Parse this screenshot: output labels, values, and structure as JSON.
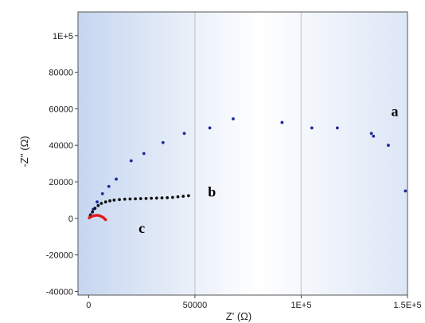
{
  "chart_data": {
    "type": "scatter",
    "xlabel": "Z' (Ω)",
    "ylabel": "-Z'' (Ω)",
    "xlim": [
      -5000,
      150000
    ],
    "ylim": [
      -42000,
      113000
    ],
    "x_ticks": [
      {
        "value": 0,
        "label": "0"
      },
      {
        "value": 50000,
        "label": "50000"
      },
      {
        "value": 100000,
        "label": "1E+5"
      },
      {
        "value": 150000,
        "label": "1.5E+5"
      }
    ],
    "y_ticks": [
      {
        "value": -40000,
        "label": "-40000"
      },
      {
        "value": -20000,
        "label": "-20000"
      },
      {
        "value": 0,
        "label": "0"
      },
      {
        "value": 20000,
        "label": "20000"
      },
      {
        "value": 40000,
        "label": "40000"
      },
      {
        "value": 60000,
        "label": "60000"
      },
      {
        "value": 80000,
        "label": "80000"
      },
      {
        "value": 100000,
        "label": "1E+5"
      }
    ],
    "grid": "vertical",
    "colors": {
      "bg_edge": "#c6d6f0",
      "bg_center": "#ffffff",
      "grid": "#d0d0d0"
    },
    "series": [
      {
        "name": "a",
        "color": "#1a2a9a",
        "points": [
          [
            900,
            2000
          ],
          [
            2200,
            5000
          ],
          [
            4000,
            9000
          ],
          [
            6500,
            13500
          ],
          [
            9500,
            17500
          ],
          [
            13000,
            21500
          ],
          [
            20000,
            31500
          ],
          [
            26000,
            35500
          ],
          [
            35000,
            41500
          ],
          [
            45000,
            46500
          ],
          [
            57000,
            49500
          ],
          [
            68000,
            54500
          ],
          [
            91000,
            52500
          ],
          [
            105000,
            49500
          ],
          [
            117000,
            49500
          ],
          [
            133000,
            46500
          ],
          [
            134000,
            45000
          ],
          [
            141000,
            40000
          ],
          [
            149000,
            15000
          ]
        ]
      },
      {
        "name": "b",
        "color": "#111111",
        "points": [
          [
            800,
            1500
          ],
          [
            1800,
            3500
          ],
          [
            3000,
            5500
          ],
          [
            4500,
            7000
          ],
          [
            6000,
            8200
          ],
          [
            8000,
            9000
          ],
          [
            10000,
            9600
          ],
          [
            12000,
            10000
          ],
          [
            14500,
            10300
          ],
          [
            17000,
            10500
          ],
          [
            19500,
            10600
          ],
          [
            22000,
            10700
          ],
          [
            24500,
            10800
          ],
          [
            27000,
            10900
          ],
          [
            29500,
            11000
          ],
          [
            32000,
            11100
          ],
          [
            34500,
            11200
          ],
          [
            37000,
            11300
          ],
          [
            39500,
            11500
          ],
          [
            42000,
            11800
          ],
          [
            44500,
            12100
          ],
          [
            47000,
            12400
          ]
        ]
      },
      {
        "name": "c",
        "color": "#e01818",
        "points": [
          [
            300,
            300
          ],
          [
            800,
            700
          ],
          [
            1500,
            1100
          ],
          [
            2300,
            1400
          ],
          [
            3100,
            1600
          ],
          [
            3900,
            1700
          ],
          [
            4700,
            1600
          ],
          [
            5500,
            1300
          ],
          [
            6300,
            900
          ],
          [
            7000,
            400
          ],
          [
            7600,
            -300
          ],
          [
            8000,
            -700
          ]
        ]
      }
    ],
    "series_labels": [
      {
        "series": "a",
        "text": "a",
        "x": 144000,
        "y": 56000
      },
      {
        "series": "b",
        "text": "b",
        "x": 58000,
        "y": 12000
      },
      {
        "series": "c",
        "text": "c",
        "x": 25000,
        "y": -8000
      }
    ]
  }
}
